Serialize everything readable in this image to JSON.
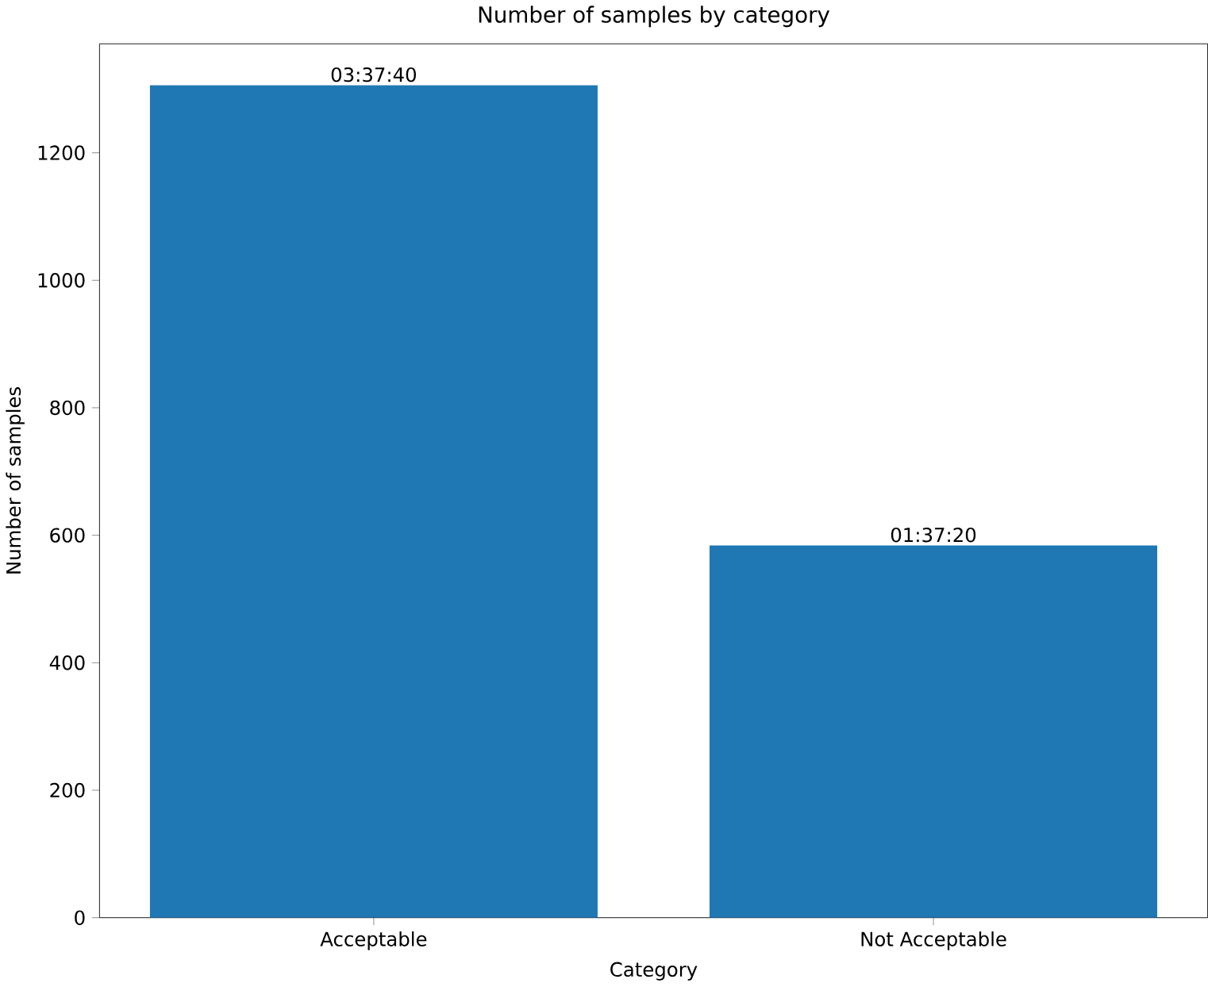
{
  "chart_data": {
    "type": "bar",
    "title": "Number of samples by category",
    "xlabel": "Category",
    "ylabel": "Number of samples",
    "categories": [
      "Acceptable",
      "Not Acceptable"
    ],
    "values": [
      1306,
      584
    ],
    "color": "#1f77b4",
    "annotations": [
      {
        "text": "03:37:40",
        "x": "Acceptable",
        "y": 1306
      },
      {
        "text": "01:37:20",
        "x": "Not Acceptable",
        "y": 584
      }
    ],
    "ylim": [
      0,
      1371
    ],
    "yticks": [
      0,
      200,
      400,
      600,
      800,
      1000,
      1200
    ]
  }
}
